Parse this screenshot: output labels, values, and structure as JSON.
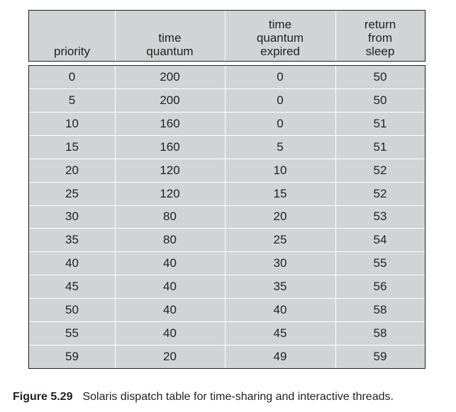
{
  "table": {
    "columns": [
      {
        "key": "priority",
        "label": "priority"
      },
      {
        "key": "time_quantum",
        "label": "time\nquantum"
      },
      {
        "key": "time_quantum_expired",
        "label": "time\nquantum\nexpired"
      },
      {
        "key": "return_from_sleep",
        "label": "return\nfrom\nsleep"
      }
    ],
    "rows": [
      [
        "0",
        "200",
        "0",
        "50"
      ],
      [
        "5",
        "200",
        "0",
        "50"
      ],
      [
        "10",
        "160",
        "0",
        "51"
      ],
      [
        "15",
        "160",
        "5",
        "51"
      ],
      [
        "20",
        "120",
        "10",
        "52"
      ],
      [
        "25",
        "120",
        "15",
        "52"
      ],
      [
        "30",
        "80",
        "20",
        "53"
      ],
      [
        "35",
        "80",
        "25",
        "54"
      ],
      [
        "40",
        "40",
        "30",
        "55"
      ],
      [
        "45",
        "40",
        "35",
        "56"
      ],
      [
        "50",
        "40",
        "40",
        "58"
      ],
      [
        "55",
        "40",
        "45",
        "58"
      ],
      [
        "59",
        "20",
        "49",
        "59"
      ]
    ]
  },
  "caption": {
    "label": "Figure 5.29",
    "text": "Solaris dispatch table for time-sharing and interactive threads."
  },
  "colors": {
    "cell_fill": "#d1d3d4",
    "border": "#231f20",
    "separator": "#ffffff",
    "text": "#231f20"
  }
}
